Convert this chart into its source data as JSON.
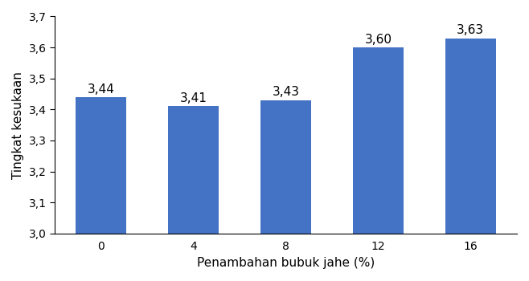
{
  "categories": [
    "0",
    "4",
    "8",
    "12",
    "16"
  ],
  "values": [
    3.44,
    3.41,
    3.43,
    3.6,
    3.63
  ],
  "bar_color": "#4472C4",
  "xlabel": "Penambahan bubuk jahe (%)",
  "ylabel": "Tingkat kesukaan",
  "ymin": 3.0,
  "ymax": 3.7,
  "yticks": [
    3.0,
    3.1,
    3.2,
    3.3,
    3.4,
    3.5,
    3.6,
    3.7
  ],
  "bar_width": 0.55,
  "label_fontsize": 11,
  "tick_fontsize": 10,
  "value_label_fontsize": 11,
  "background_color": "#ffffff"
}
